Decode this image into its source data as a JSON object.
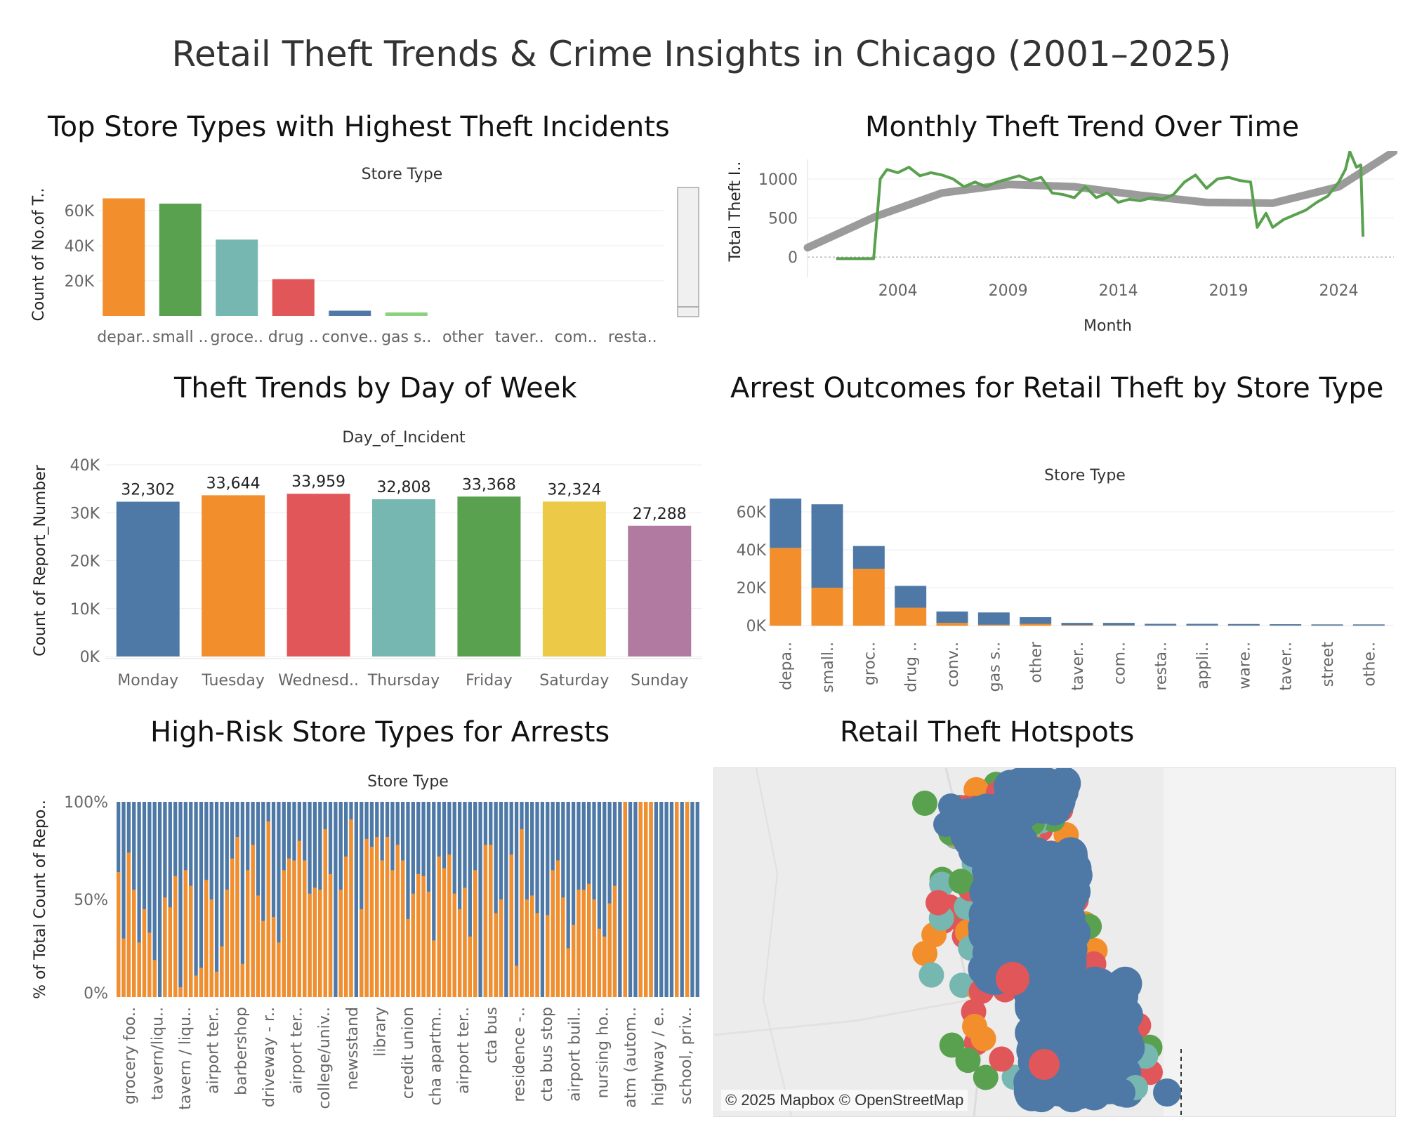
{
  "dashboard_title": "Retail Theft Trends & Crime Insights in Chicago (2001–2025)",
  "panels": {
    "top_store": "Top Store Types with Highest Theft Incidents",
    "monthly": "Monthly Theft Trend Over Time",
    "day_of_week": "Theft Trends by Day of Week",
    "arrest_outcomes": "Arrest Outcomes for Retail Theft by Store Type",
    "high_risk": "High-Risk Store Types for Arrests",
    "hotspots": "Retail Theft Hotspots"
  },
  "map_attribution": "© 2025 Mapbox © OpenStreetMap",
  "colors": {
    "orange": "#F28E2B",
    "green": "#59A14F",
    "teal": "#76B7B2",
    "red": "#E15759",
    "blue": "#4E79A7",
    "lightgreen": "#8CD17D",
    "yellow": "#EDC948",
    "purple": "#B07AA1",
    "trend": "#8a8a8a"
  },
  "chart_data": [
    {
      "id": "top_store",
      "type": "bar",
      "header": "Store Type",
      "ylabel": "Count of No.of T..",
      "ylim": [
        0,
        70000
      ],
      "yticks": [
        "20K",
        "40K",
        "60K"
      ],
      "yticks_values": [
        20000,
        40000,
        60000
      ],
      "categories": [
        "depar..",
        "small ..",
        "groce..",
        "drug ..",
        "conve..",
        "gas s..",
        "other",
        "taver..",
        "com..",
        "resta.."
      ],
      "values": [
        67000,
        64000,
        43500,
        21000,
        3000,
        2000,
        0,
        0,
        0,
        0
      ]
    },
    {
      "id": "monthly",
      "type": "line",
      "ylabel": "Total Theft I..",
      "xlabel": "Month",
      "xticks": [
        "2004",
        "2009",
        "2014",
        "2019",
        "2024"
      ],
      "yticks": [
        "0",
        "500",
        "1000"
      ],
      "xlim": [
        1999.9,
        2026.5
      ],
      "ylim": [
        -80,
        1250
      ],
      "series": [
        {
          "values": [
            [
              2001.2,
              -20
            ],
            [
              2002.0,
              -20
            ],
            [
              2002.9,
              -20
            ],
            [
              2003.2,
              1000
            ],
            [
              2003.5,
              1120
            ],
            [
              2004.0,
              1080
            ],
            [
              2004.5,
              1150
            ],
            [
              2005.0,
              1040
            ],
            [
              2005.5,
              1080
            ],
            [
              2006.0,
              1050
            ],
            [
              2006.5,
              1000
            ],
            [
              2007.0,
              900
            ],
            [
              2007.5,
              960
            ],
            [
              2008.0,
              900
            ],
            [
              2008.5,
              960
            ],
            [
              2009.0,
              1000
            ],
            [
              2009.5,
              1040
            ],
            [
              2010.0,
              980
            ],
            [
              2010.5,
              1020
            ],
            [
              2011.0,
              820
            ],
            [
              2011.5,
              800
            ],
            [
              2012.0,
              760
            ],
            [
              2012.5,
              900
            ],
            [
              2013.0,
              760
            ],
            [
              2013.5,
              820
            ],
            [
              2014.0,
              700
            ],
            [
              2014.5,
              740
            ],
            [
              2015.0,
              720
            ],
            [
              2015.5,
              760
            ],
            [
              2016.0,
              740
            ],
            [
              2016.5,
              800
            ],
            [
              2017.0,
              960
            ],
            [
              2017.5,
              1050
            ],
            [
              2018.0,
              880
            ],
            [
              2018.5,
              1000
            ],
            [
              2019.0,
              1020
            ],
            [
              2019.5,
              980
            ],
            [
              2020.0,
              960
            ],
            [
              2020.3,
              380
            ],
            [
              2020.7,
              560
            ],
            [
              2021.0,
              380
            ],
            [
              2021.5,
              480
            ],
            [
              2022.0,
              540
            ],
            [
              2022.5,
              600
            ],
            [
              2023.0,
              700
            ],
            [
              2023.5,
              780
            ],
            [
              2024.0,
              960
            ],
            [
              2024.3,
              1120
            ],
            [
              2024.5,
              1350
            ],
            [
              2024.8,
              1150
            ],
            [
              2025.0,
              1180
            ],
            [
              2025.1,
              260
            ]
          ]
        }
      ],
      "trend_line": [
        [
          1999.9,
          120
        ],
        [
          2003,
          520
        ],
        [
          2006,
          820
        ],
        [
          2009,
          930
        ],
        [
          2012,
          900
        ],
        [
          2015,
          790
        ],
        [
          2018,
          700
        ],
        [
          2021,
          690
        ],
        [
          2024,
          900
        ],
        [
          2026.5,
          1350
        ]
      ]
    },
    {
      "id": "day_of_week",
      "type": "bar",
      "header": "Day_of_Incident",
      "ylabel": "Count of Report_Number",
      "ylim": [
        0,
        40000
      ],
      "yticks": [
        "0K",
        "10K",
        "20K",
        "30K",
        "40K"
      ],
      "categories": [
        "Monday",
        "Tuesday",
        "Wednesd..",
        "Thursday",
        "Friday",
        "Saturday",
        "Sunday"
      ],
      "values": [
        32302,
        33644,
        33959,
        32808,
        33368,
        32324,
        27288
      ],
      "data_labels": [
        "32,302",
        "33,644",
        "33,959",
        "32,808",
        "33,368",
        "32,324",
        "27,288"
      ]
    },
    {
      "id": "arrest_outcomes",
      "type": "bar",
      "stacked": true,
      "header": "Store Type",
      "ylim": [
        0,
        70000
      ],
      "yticks": [
        "0K",
        "20K",
        "40K",
        "60K"
      ],
      "categories": [
        "depa..",
        "small..",
        "groc..",
        "drug ..",
        "conv..",
        "gas s..",
        "other",
        "taver..",
        "com..",
        "resta..",
        "appli..",
        "ware..",
        "taver..",
        "street",
        "othe.."
      ],
      "series": [
        {
          "name": "",
          "values": [
            41000,
            20000,
            30000,
            9500,
            1500,
            500,
            1000,
            300,
            200,
            100,
            100,
            100,
            100,
            100,
            100
          ]
        },
        {
          "name": "",
          "values": [
            26000,
            44000,
            12000,
            11500,
            6000,
            6500,
            3500,
            1200,
            1300,
            900,
            900,
            800,
            700,
            600,
            600
          ]
        }
      ]
    },
    {
      "id": "high_risk",
      "type": "bar",
      "stacked": true,
      "percent": true,
      "header": "Store Type",
      "ylabel": "% of Total Count of Repo..",
      "yticks": [
        "0%",
        "50%",
        "100%"
      ],
      "tick_labels": [
        "grocery foo..",
        "tavern/liqu..",
        "tavern / liqu..",
        "airport ter..",
        "barbershop",
        "driveway - r..",
        "airport ter..",
        "college/univ..",
        "newsstand",
        "library",
        "credit union",
        "cha apartm..",
        "airport ter..",
        "cta bus",
        "residence -..",
        "cta bus stop",
        "airport buil..",
        "nursing ho..",
        "atm (autom..",
        "highway / e..",
        "school, priv.."
      ],
      "orange_share": [
        0.64,
        0.3,
        0.74,
        0.55,
        0.28,
        0.45,
        0.33,
        0.19,
        0.0,
        0.51,
        0.46,
        0.62,
        0.05,
        0.65,
        0.57,
        0.11,
        0.15,
        0.6,
        0.5,
        0.13,
        0.26,
        0.55,
        0.71,
        0.82,
        0.17,
        0.65,
        0.78,
        0.52,
        0.39,
        0.9,
        0.41,
        0.28,
        0.65,
        0.71,
        0.7,
        0.8,
        0.7,
        0.53,
        0.56,
        0.55,
        0.86,
        0.63,
        0.0,
        0.55,
        0.72,
        0.91,
        0.0,
        0.45,
        0.81,
        0.77,
        0.82,
        0.7,
        0.82,
        0.65,
        0.78,
        0.7,
        0.4,
        0.53,
        0.63,
        0.62,
        0.54,
        0.29,
        0.72,
        0.66,
        0.73,
        0.53,
        0.45,
        0.56,
        0.31,
        0.65,
        0.0,
        0.78,
        0.78,
        0.43,
        0.5,
        0.0,
        0.73,
        0.16,
        0.86,
        0.5,
        0.52,
        0.43,
        0.0,
        0.42,
        0.65,
        0.7,
        0.51,
        0.25,
        0.37,
        0.55,
        0.55,
        0.58,
        0.5,
        0.35,
        0.31,
        0.48,
        0.57,
        0.0,
        1.0,
        0.0,
        0.0,
        1.0,
        1.0,
        1.0,
        0.0,
        0.0,
        0.0,
        0.0,
        1.0,
        0.0,
        1.0,
        0.0,
        0.0
      ]
    }
  ]
}
